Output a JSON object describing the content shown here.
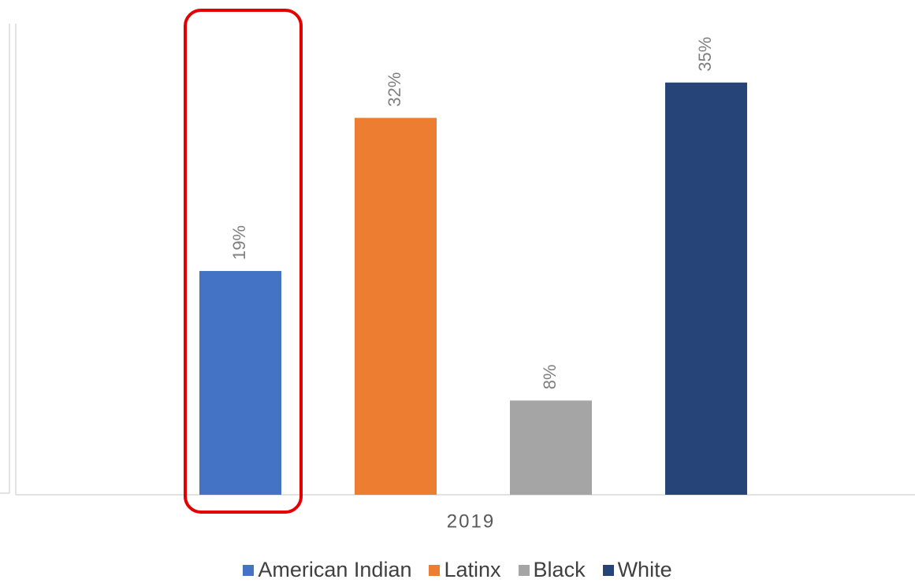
{
  "chart_data": {
    "type": "bar",
    "categories": [
      "2019"
    ],
    "series": [
      {
        "name": "American Indian",
        "color": "#4472c4",
        "values": [
          19
        ],
        "value_labels": [
          "19%"
        ]
      },
      {
        "name": "Latinx",
        "color": "#ed7d31",
        "values": [
          32
        ],
        "value_labels": [
          "32%"
        ]
      },
      {
        "name": "Black",
        "color": "#a5a5a5",
        "values": [
          8
        ],
        "value_labels": [
          "8%"
        ]
      },
      {
        "name": "White",
        "color": "#264478",
        "values": [
          35
        ],
        "value_labels": [
          "35%"
        ]
      }
    ],
    "ylim": [
      0,
      40
    ]
  }
}
